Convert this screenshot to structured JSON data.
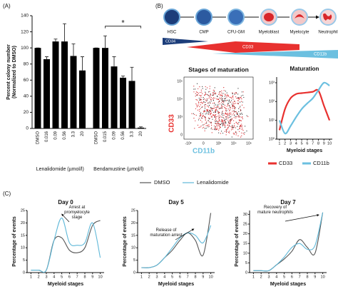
{
  "panel_labels": [
    "(A)",
    "(B)",
    "(C)"
  ],
  "schematic": {
    "cells": [
      "HSC",
      "CMP",
      "CFU-GM",
      "Myeloblast",
      "Myelocyte",
      "Neutrophil"
    ],
    "markers": [
      "CD34",
      "CD33",
      "CD11b"
    ]
  },
  "legend_c": [
    "DMSO",
    "Lenalidomide"
  ],
  "chart_data": [
    {
      "type": "bar",
      "ylabel_lines": [
        "Percent colony number",
        "(Normalized to DMSO)"
      ],
      "ylim": [
        0,
        140
      ],
      "yticks": [
        0,
        20,
        40,
        60,
        80,
        100,
        120,
        140
      ],
      "color": "#000000",
      "annotation": "*",
      "series": [
        {
          "name": "Lenalidomide (µmol/l)",
          "categories": [
            "DMSO",
            "0.016",
            "0.09",
            "0.56",
            "3.3",
            "20"
          ],
          "values": [
            100,
            86,
            108,
            108,
            90,
            72
          ],
          "errors": [
            0,
            3,
            3,
            22,
            15,
            17
          ]
        },
        {
          "name": "Bendamustine (µmol/l)",
          "categories": [
            "DMSO",
            "0.015",
            "0.09",
            "0.56",
            "3.3",
            "20"
          ],
          "values": [
            100,
            100,
            77,
            63,
            59,
            1
          ],
          "errors": [
            0,
            15,
            12,
            2,
            17,
            1
          ]
        }
      ]
    },
    {
      "type": "density",
      "title": "Stages of maturation",
      "xlabel": "CD11b",
      "ylabel": "CD33",
      "xlabel_color": "#6cc0e0",
      "ylabel_color": "#e8312f",
      "xtick_labels": [
        "-10³",
        "0",
        "10³",
        "10⁴",
        "10⁵"
      ],
      "ytick_labels": [
        "0",
        "10³",
        "10⁴",
        "10⁵"
      ]
    },
    {
      "type": "line",
      "title": "Maturation",
      "xlabel": "Myeloid stages",
      "log_y": true,
      "x": [
        1,
        2,
        3,
        4,
        5,
        6,
        7,
        8,
        9,
        10
      ],
      "xlim": [
        0.5,
        10.5
      ],
      "xticks": [
        1,
        2,
        3,
        4,
        5,
        6,
        7,
        8,
        9,
        10
      ],
      "ylim": [
        1,
        2000
      ],
      "yticks": [
        {
          "value": 1,
          "label": "10⁰"
        },
        {
          "value": 10,
          "label": "10¹"
        },
        {
          "value": 100,
          "label": "10²"
        },
        {
          "value": 1000,
          "label": "10³"
        }
      ],
      "series": [
        {
          "name": "CD33",
          "color": "#e8312f",
          "values": [
            3,
            40,
            150,
            250,
            280,
            300,
            330,
            380,
            60,
            10
          ]
        },
        {
          "name": "CD11b",
          "color": "#6cc0e0",
          "values": [
            10,
            2,
            5,
            15,
            40,
            80,
            150,
            400,
            1000,
            700
          ]
        }
      ]
    },
    {
      "type": "line",
      "title": "Day 0",
      "xlabel": "Myeloid stages",
      "ylabel": "Percentage of events",
      "annotation": "Arrest at promyelocyte stage",
      "x": [
        1,
        2,
        3,
        4,
        5,
        6,
        7,
        8,
        9,
        10
      ],
      "xlim": [
        0.5,
        10.5
      ],
      "xticks": [
        1,
        2,
        3,
        4,
        5,
        6,
        7,
        8,
        9,
        10
      ],
      "ylim": [
        0,
        25
      ],
      "yticks": [
        0,
        5,
        10,
        15,
        20,
        25
      ],
      "series": [
        {
          "name": "DMSO",
          "color": "#555555",
          "values": [
            1,
            1,
            1,
            13,
            14,
            9,
            8,
            10,
            19,
            21
          ]
        },
        {
          "name": "Lenalidomide",
          "color": "#5fb8d8",
          "values": [
            1,
            1,
            1,
            13,
            22,
            12,
            11,
            12,
            20,
            6
          ]
        }
      ]
    },
    {
      "type": "line",
      "title": "Day 5",
      "xlabel": "Myeloid stages",
      "ylabel": "Percentage of events",
      "annotation": "Release of maturation arrest",
      "x": [
        1,
        2,
        3,
        4,
        5,
        6,
        7,
        8,
        9,
        10
      ],
      "xlim": [
        0.5,
        10.5
      ],
      "xticks": [
        1,
        2,
        3,
        4,
        5,
        6,
        7,
        8,
        9,
        10
      ],
      "ylim": [
        0,
        25
      ],
      "yticks": [
        0,
        5,
        10,
        15,
        20,
        25
      ],
      "series": [
        {
          "color": "#555555",
          "values": [
            2,
            2,
            3,
            6,
            9,
            13,
            16,
            13,
            7,
            24
          ]
        },
        {
          "color": "#5fb8d8",
          "values": [
            2,
            2,
            3,
            6,
            10,
            14,
            16,
            15,
            12,
            19
          ]
        }
      ]
    },
    {
      "type": "line",
      "title": "Day 7",
      "xlabel": "Myeloid stages",
      "ylabel": "Percentage of events",
      "annotation": "Recovery of mature neutrophils",
      "x": [
        1,
        2,
        3,
        4,
        5,
        6,
        7,
        8,
        9,
        10
      ],
      "xlim": [
        0.5,
        10.5
      ],
      "xticks": [
        1,
        2,
        3,
        4,
        5,
        6,
        7,
        8,
        9,
        10
      ],
      "ylim": [
        0,
        32
      ],
      "yticks": [
        0,
        5,
        10,
        15,
        20,
        25,
        30
      ],
      "series": [
        {
          "color": "#555555",
          "values": [
            1,
            1,
            1,
            4,
            7,
            11,
            17,
            13,
            10,
            31
          ]
        },
        {
          "color": "#5fb8d8",
          "values": [
            1,
            1,
            1,
            4,
            8,
            13,
            15,
            12,
            14,
            31
          ]
        }
      ]
    }
  ]
}
